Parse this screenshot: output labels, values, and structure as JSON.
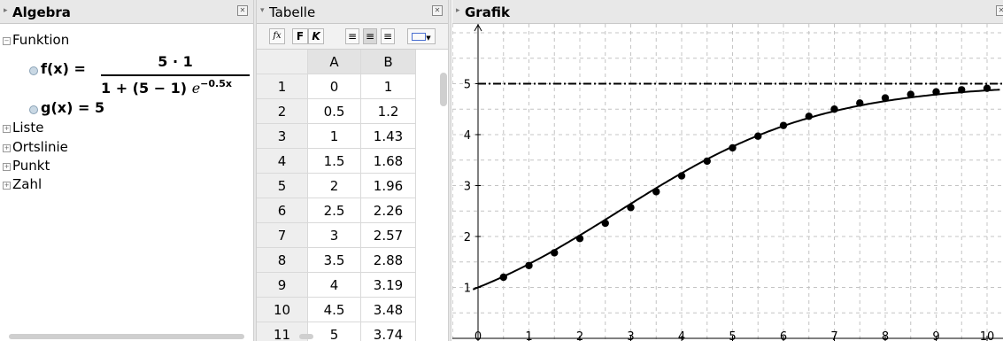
{
  "algebra": {
    "title": "Algebra",
    "categories": [
      "Funktion",
      "Liste",
      "Ortslinie",
      "Punkt",
      "Zahl"
    ],
    "f_lhs": "f(x) =",
    "f_numerator": "5 · 1",
    "f_denominator": "1 + (5 − 1)",
    "f_e": "e",
    "f_exponent": "−0.5x",
    "g_text": "g(x) = 5"
  },
  "tabelle": {
    "title": "Tabelle",
    "toolbar": {
      "fx": "fx",
      "bold": "F",
      "italic": "K"
    },
    "columns": [
      "A",
      "B"
    ],
    "rows": [
      {
        "n": "1",
        "a": "0",
        "b": "1"
      },
      {
        "n": "2",
        "a": "0.5",
        "b": "1.2"
      },
      {
        "n": "3",
        "a": "1",
        "b": "1.43"
      },
      {
        "n": "4",
        "a": "1.5",
        "b": "1.68"
      },
      {
        "n": "5",
        "a": "2",
        "b": "1.96"
      },
      {
        "n": "6",
        "a": "2.5",
        "b": "2.26"
      },
      {
        "n": "7",
        "a": "3",
        "b": "2.57"
      },
      {
        "n": "8",
        "a": "3.5",
        "b": "2.88"
      },
      {
        "n": "9",
        "a": "4",
        "b": "3.19"
      },
      {
        "n": "10",
        "a": "4.5",
        "b": "3.48"
      },
      {
        "n": "11",
        "a": "5",
        "b": "3.74"
      }
    ]
  },
  "grafik": {
    "title": "Grafik",
    "x_ticks": [
      "0",
      "1",
      "2",
      "3",
      "4",
      "5",
      "6",
      "7",
      "8",
      "9",
      "10"
    ],
    "y_ticks": [
      "1",
      "2",
      "3",
      "4",
      "5"
    ]
  },
  "chart_data": {
    "type": "scatter",
    "xlim": [
      -0.1,
      10.25
    ],
    "ylim": [
      -0.1,
      5.5
    ],
    "grid": true,
    "function_f": {
      "a": 5,
      "b": 1,
      "k": 0.5
    },
    "horizontal_line_y": 5,
    "points": [
      [
        0.5,
        1.2
      ],
      [
        1,
        1.43
      ],
      [
        1.5,
        1.68
      ],
      [
        2,
        1.96
      ],
      [
        2.5,
        2.26
      ],
      [
        3,
        2.57
      ],
      [
        3.5,
        2.88
      ],
      [
        4,
        3.19
      ],
      [
        4.5,
        3.48
      ],
      [
        5,
        3.74
      ],
      [
        5.5,
        3.97
      ],
      [
        6,
        4.18
      ],
      [
        6.5,
        4.36
      ],
      [
        7,
        4.5
      ],
      [
        7.5,
        4.62
      ],
      [
        8,
        4.72
      ],
      [
        8.5,
        4.79
      ],
      [
        9,
        4.84
      ],
      [
        9.5,
        4.88
      ],
      [
        10,
        4.91
      ]
    ]
  }
}
